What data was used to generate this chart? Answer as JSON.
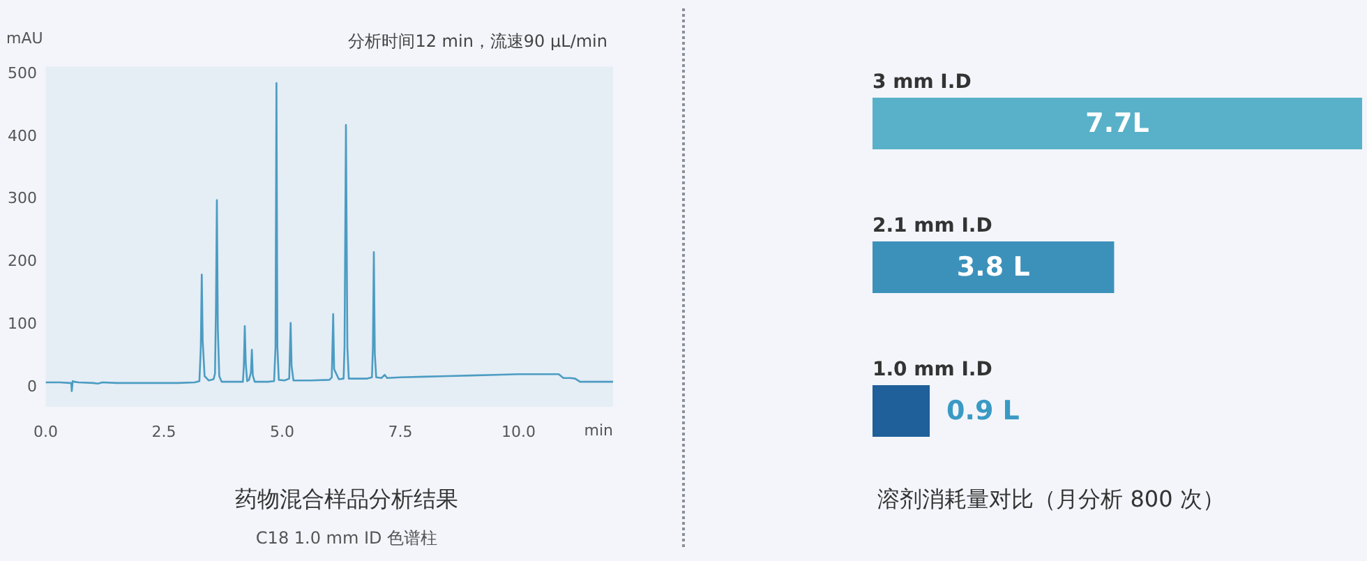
{
  "chart_data": [
    {
      "type": "line",
      "title": "药物混合样品分析结果",
      "subtitle": "C18 1.0 mm ID 色谱柱",
      "xlabel": "min",
      "ylabel": "mAU",
      "annotations": [
        "分析时间12 min，流速90 μL/min"
      ],
      "x": [
        0,
        0.3,
        0.5,
        0.54,
        0.55,
        0.57,
        0.6,
        0.7,
        1.0,
        1.1,
        1.2,
        1.5,
        2.0,
        2.5,
        2.8,
        3.15,
        3.25,
        3.28,
        3.3,
        3.32,
        3.36,
        3.45,
        3.55,
        3.58,
        3.6,
        3.62,
        3.64,
        3.67,
        3.72,
        4.0,
        4.17,
        4.19,
        4.21,
        4.23,
        4.26,
        4.3,
        4.34,
        4.36,
        4.38,
        4.42,
        4.7,
        4.83,
        4.86,
        4.88,
        4.9,
        4.93,
        5.05,
        5.15,
        5.18,
        5.2,
        5.24,
        5.6,
        6.0,
        6.05,
        6.08,
        6.1,
        6.2,
        6.3,
        6.32,
        6.35,
        6.38,
        6.41,
        6.8,
        6.9,
        6.92,
        6.94,
        6.96,
        6.99,
        7.1,
        7.17,
        7.22,
        7.5,
        8.0,
        8.5,
        9.0,
        9.5,
        10.0,
        10.5,
        10.85,
        10.95,
        11.1,
        11.2,
        11.3,
        11.6,
        12.0
      ],
      "series": [
        {
          "color": "#4b9cc2",
          "values": [
            4,
            4,
            3,
            3,
            -10,
            6,
            5,
            4,
            3,
            2,
            4,
            3,
            3,
            3,
            3,
            4,
            6,
            60,
            176,
            70,
            14,
            7,
            9,
            18,
            120,
            295,
            90,
            14,
            5,
            5,
            5,
            30,
            94,
            35,
            6,
            8,
            20,
            56,
            15,
            5,
            5,
            6,
            60,
            482,
            60,
            8,
            7,
            10,
            99,
            30,
            7,
            7,
            8,
            12,
            113,
            25,
            9,
            10,
            60,
            415,
            60,
            10,
            10,
            12,
            60,
            212,
            50,
            12,
            11,
            16,
            11,
            12,
            13,
            14,
            15,
            16,
            17,
            17,
            17,
            11,
            11,
            10,
            5,
            5,
            5
          ]
        }
      ],
      "xlim": [
        0,
        12
      ],
      "ylim": [
        -35,
        508
      ],
      "xticks": [
        {
          "value": 0,
          "label": "0.0"
        },
        2.5,
        {
          "value": 5,
          "label": "5.0"
        },
        7.5,
        {
          "value": 10,
          "label": "10.0"
        }
      ],
      "yticks": [
        0,
        100,
        200,
        300,
        400,
        500
      ]
    },
    {
      "type": "bar",
      "orientation": "horizontal",
      "title": "溶剂消耗量对比（月分析 800 次）",
      "categories": [
        "3 mm I.D",
        "2.1 mm I.D",
        "1.0 mm I.D"
      ],
      "values": [
        7.7,
        3.8,
        0.9
      ],
      "value_labels": [
        "7.7L",
        "3.8 L",
        "0.9 L"
      ],
      "colors": [
        "#58b1c9",
        "#3c91ba",
        "#1f5f9a"
      ]
    }
  ]
}
